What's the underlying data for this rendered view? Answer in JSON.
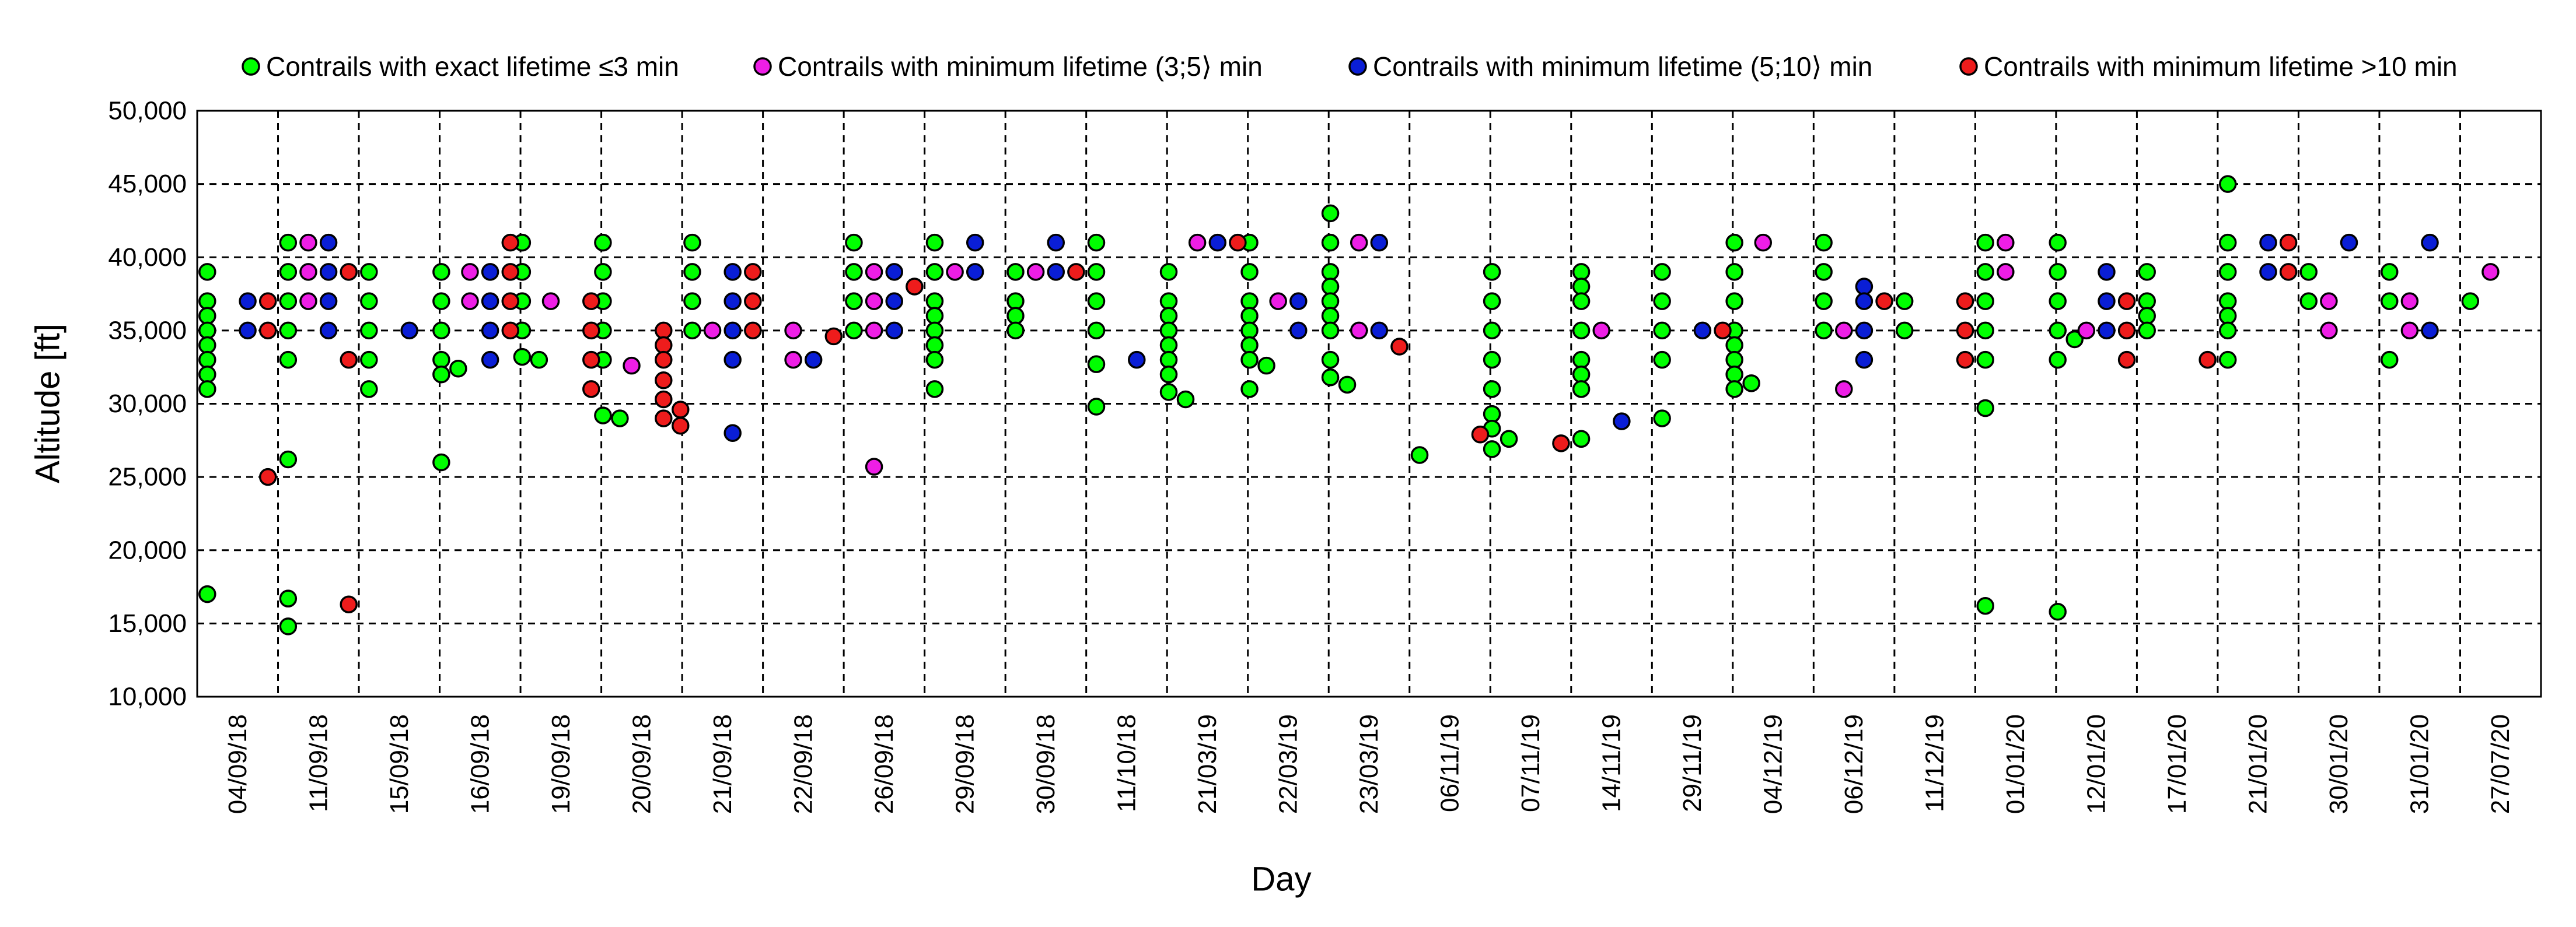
{
  "chart_data": {
    "type": "scatter",
    "title": "",
    "xlabel": "Day",
    "ylabel": "Altitude [ft]",
    "ylim": [
      10000,
      50000
    ],
    "yticks": [
      10000,
      15000,
      20000,
      25000,
      30000,
      35000,
      40000,
      45000,
      50000
    ],
    "ytick_labels": [
      "10,000",
      "15,000",
      "20,000",
      "25,000",
      "30,000",
      "35,000",
      "40,000",
      "45,000",
      "50,000"
    ],
    "categories": [
      "04/09/18",
      "11/09/18",
      "15/09/18",
      "16/09/18",
      "19/09/18",
      "20/09/18",
      "21/09/18",
      "22/09/18",
      "26/09/18",
      "29/09/18",
      "30/09/18",
      "11/10/18",
      "21/03/19",
      "22/03/19",
      "23/03/19",
      "06/11/19",
      "07/11/19",
      "14/11/19",
      "29/11/19",
      "04/12/19",
      "06/12/19",
      "11/12/19",
      "01/01/20",
      "12/01/20",
      "17/01/20",
      "21/01/20",
      "30/01/20",
      "31/01/20",
      "27/07/20"
    ],
    "grid": true,
    "legend_position": "top",
    "series": [
      {
        "name": "Contrails with exact lifetime ≤3 min",
        "color": "#00ff00",
        "points": [
          [
            0,
            39000
          ],
          [
            0,
            37000
          ],
          [
            0,
            36000
          ],
          [
            0,
            35000
          ],
          [
            0,
            34000
          ],
          [
            0,
            33000
          ],
          [
            0,
            32000
          ],
          [
            0,
            31000
          ],
          [
            0,
            17000
          ],
          [
            1,
            41000
          ],
          [
            1,
            39000
          ],
          [
            1,
            37000
          ],
          [
            1,
            35000
          ],
          [
            1,
            33000
          ],
          [
            1,
            26200
          ],
          [
            1,
            16700
          ],
          [
            1,
            14800
          ],
          [
            2,
            39000
          ],
          [
            2,
            37000
          ],
          [
            2,
            35000
          ],
          [
            2,
            33000
          ],
          [
            2,
            31000
          ],
          [
            3,
            39000
          ],
          [
            3,
            37000
          ],
          [
            3,
            35000
          ],
          [
            3,
            33000
          ],
          [
            3,
            32400
          ],
          [
            3,
            32000
          ],
          [
            3,
            26000
          ],
          [
            4,
            41000
          ],
          [
            4,
            39000
          ],
          [
            4,
            37000
          ],
          [
            4,
            35000
          ],
          [
            4,
            33200
          ],
          [
            4,
            33000
          ],
          [
            5,
            41000
          ],
          [
            5,
            39000
          ],
          [
            5,
            37000
          ],
          [
            5,
            35000
          ],
          [
            5,
            33000
          ],
          [
            5,
            29200
          ],
          [
            5,
            29000
          ],
          [
            6,
            41000
          ],
          [
            6,
            39000
          ],
          [
            6,
            37000
          ],
          [
            6,
            35000
          ],
          [
            8,
            41000
          ],
          [
            8,
            39000
          ],
          [
            8,
            37000
          ],
          [
            8,
            35000
          ],
          [
            9,
            41000
          ],
          [
            9,
            39000
          ],
          [
            9,
            37000
          ],
          [
            9,
            36000
          ],
          [
            9,
            35000
          ],
          [
            9,
            34000
          ],
          [
            9,
            33000
          ],
          [
            9,
            31000
          ],
          [
            10,
            39000
          ],
          [
            10,
            37000
          ],
          [
            10,
            36000
          ],
          [
            10,
            35000
          ],
          [
            11,
            41000
          ],
          [
            11,
            39000
          ],
          [
            11,
            37000
          ],
          [
            11,
            35000
          ],
          [
            11,
            32700
          ],
          [
            11,
            29800
          ],
          [
            12,
            39000
          ],
          [
            12,
            37000
          ],
          [
            12,
            36000
          ],
          [
            12,
            35000
          ],
          [
            12,
            34000
          ],
          [
            12,
            33000
          ],
          [
            12,
            32000
          ],
          [
            12,
            30800
          ],
          [
            12,
            30300
          ],
          [
            13,
            41000
          ],
          [
            13,
            39000
          ],
          [
            13,
            37000
          ],
          [
            13,
            36000
          ],
          [
            13,
            35000
          ],
          [
            13,
            34000
          ],
          [
            13,
            33000
          ],
          [
            13,
            32600
          ],
          [
            13,
            31000
          ],
          [
            14,
            43000
          ],
          [
            14,
            41000
          ],
          [
            14,
            39000
          ],
          [
            14,
            38000
          ],
          [
            14,
            37000
          ],
          [
            14,
            36000
          ],
          [
            14,
            35000
          ],
          [
            14,
            33000
          ],
          [
            14,
            31800
          ],
          [
            14,
            31300
          ],
          [
            15,
            26500
          ],
          [
            16,
            39000
          ],
          [
            16,
            37000
          ],
          [
            16,
            35000
          ],
          [
            16,
            33000
          ],
          [
            16,
            31000
          ],
          [
            16,
            29300
          ],
          [
            16,
            28300
          ],
          [
            16,
            27600
          ],
          [
            16,
            26900
          ],
          [
            17,
            39000
          ],
          [
            17,
            38000
          ],
          [
            17,
            37000
          ],
          [
            17,
            35000
          ],
          [
            17,
            33000
          ],
          [
            17,
            32000
          ],
          [
            17,
            31000
          ],
          [
            17,
            27600
          ],
          [
            18,
            39000
          ],
          [
            18,
            37000
          ],
          [
            18,
            35000
          ],
          [
            18,
            33000
          ],
          [
            18,
            29000
          ],
          [
            19,
            41000
          ],
          [
            19,
            39000
          ],
          [
            19,
            37000
          ],
          [
            19,
            35000
          ],
          [
            19,
            34000
          ],
          [
            19,
            33000
          ],
          [
            19,
            32000
          ],
          [
            19,
            31400
          ],
          [
            19,
            31000
          ],
          [
            20,
            41000
          ],
          [
            20,
            39000
          ],
          [
            20,
            37000
          ],
          [
            20,
            35000
          ],
          [
            21,
            37000
          ],
          [
            21,
            35000
          ],
          [
            22,
            41000
          ],
          [
            22,
            39000
          ],
          [
            22,
            37000
          ],
          [
            22,
            35000
          ],
          [
            22,
            33000
          ],
          [
            22,
            29700
          ],
          [
            22,
            16200
          ],
          [
            23,
            41000
          ],
          [
            23,
            39000
          ],
          [
            23,
            37000
          ],
          [
            23,
            35000
          ],
          [
            23,
            34400
          ],
          [
            23,
            33000
          ],
          [
            23,
            15800
          ],
          [
            24,
            39000
          ],
          [
            24,
            37000
          ],
          [
            24,
            36000
          ],
          [
            24,
            35000
          ],
          [
            25,
            45000
          ],
          [
            25,
            41000
          ],
          [
            25,
            39000
          ],
          [
            25,
            37000
          ],
          [
            25,
            36000
          ],
          [
            25,
            35000
          ],
          [
            25,
            33000
          ],
          [
            26,
            39000
          ],
          [
            26,
            37000
          ],
          [
            27,
            39000
          ],
          [
            27,
            37000
          ],
          [
            27,
            33000
          ],
          [
            28,
            37000
          ]
        ]
      },
      {
        "name": "Contrails with minimum lifetime (3;5⟩ min",
        "color": "#ee1ee6",
        "points": [
          [
            1,
            41000
          ],
          [
            1,
            39000
          ],
          [
            1,
            37000
          ],
          [
            3,
            39000
          ],
          [
            3,
            37000
          ],
          [
            4,
            37000
          ],
          [
            5,
            32600
          ],
          [
            6,
            35000
          ],
          [
            7,
            35000
          ],
          [
            7,
            33000
          ],
          [
            8,
            39000
          ],
          [
            8,
            37000
          ],
          [
            8,
            35000
          ],
          [
            8,
            25700
          ],
          [
            9,
            39000
          ],
          [
            10,
            39000
          ],
          [
            12,
            41000
          ],
          [
            13,
            37000
          ],
          [
            14,
            41000
          ],
          [
            14,
            35000
          ],
          [
            17,
            35000
          ],
          [
            19,
            41000
          ],
          [
            20,
            35000
          ],
          [
            20,
            31000
          ],
          [
            22,
            41000
          ],
          [
            22,
            39000
          ],
          [
            23,
            35000
          ],
          [
            26,
            37000
          ],
          [
            26,
            35000
          ],
          [
            27,
            37000
          ],
          [
            27,
            35000
          ],
          [
            28,
            39000
          ]
        ]
      },
      {
        "name": "Contrails with minimum lifetime (5;10⟩ min",
        "color": "#0a1ed6",
        "points": [
          [
            0,
            37000
          ],
          [
            0,
            35000
          ],
          [
            1,
            41000
          ],
          [
            1,
            39000
          ],
          [
            1,
            37000
          ],
          [
            1,
            35000
          ],
          [
            2,
            35000
          ],
          [
            3,
            39000
          ],
          [
            3,
            37000
          ],
          [
            3,
            35000
          ],
          [
            3,
            33000
          ],
          [
            6,
            39000
          ],
          [
            6,
            37000
          ],
          [
            6,
            35000
          ],
          [
            6,
            33000
          ],
          [
            6,
            28000
          ],
          [
            7,
            33000
          ],
          [
            8,
            39000
          ],
          [
            8,
            37000
          ],
          [
            8,
            35000
          ],
          [
            9,
            41000
          ],
          [
            9,
            39000
          ],
          [
            10,
            41000
          ],
          [
            10,
            39000
          ],
          [
            11,
            33000
          ],
          [
            12,
            41000
          ],
          [
            13,
            37000
          ],
          [
            13,
            35000
          ],
          [
            14,
            41000
          ],
          [
            14,
            35000
          ],
          [
            17,
            28800
          ],
          [
            18,
            35000
          ],
          [
            20,
            38000
          ],
          [
            20,
            37000
          ],
          [
            20,
            35000
          ],
          [
            20,
            33000
          ],
          [
            23,
            39000
          ],
          [
            23,
            37000
          ],
          [
            23,
            35000
          ],
          [
            25,
            41000
          ],
          [
            25,
            39000
          ],
          [
            26,
            41000
          ],
          [
            27,
            41000
          ],
          [
            27,
            35000
          ]
        ]
      },
      {
        "name": "Contrails with minimum lifetime >10 min",
        "color": "#ee1c1c",
        "points": [
          [
            0,
            37000
          ],
          [
            0,
            35000
          ],
          [
            0,
            25000
          ],
          [
            1,
            39000
          ],
          [
            1,
            33000
          ],
          [
            1,
            16300
          ],
          [
            3,
            41000
          ],
          [
            3,
            39000
          ],
          [
            3,
            37000
          ],
          [
            3,
            35000
          ],
          [
            4,
            37000
          ],
          [
            4,
            35000
          ],
          [
            4,
            33000
          ],
          [
            4,
            31000
          ],
          [
            5,
            35000
          ],
          [
            5,
            34000
          ],
          [
            5,
            33000
          ],
          [
            5,
            31600
          ],
          [
            5,
            30300
          ],
          [
            5,
            29600
          ],
          [
            5,
            29000
          ],
          [
            5,
            28500
          ],
          [
            6,
            39000
          ],
          [
            6,
            37000
          ],
          [
            6,
            35000
          ],
          [
            7,
            34600
          ],
          [
            8,
            38000
          ],
          [
            10,
            39000
          ],
          [
            12,
            41000
          ],
          [
            14,
            33900
          ],
          [
            15,
            27900
          ],
          [
            16,
            27300
          ],
          [
            18,
            35000
          ],
          [
            20,
            37000
          ],
          [
            21,
            37000
          ],
          [
            21,
            35000
          ],
          [
            21,
            33000
          ],
          [
            23,
            37000
          ],
          [
            23,
            35000
          ],
          [
            23,
            33000
          ],
          [
            24,
            33000
          ],
          [
            25,
            41000
          ],
          [
            25,
            39000
          ]
        ]
      }
    ]
  }
}
